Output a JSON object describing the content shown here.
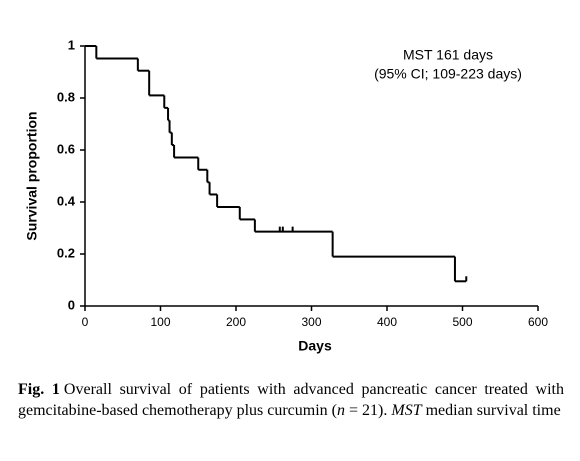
{
  "chart_data": {
    "type": "step",
    "x_label": "Days",
    "y_label": "Survival proportion",
    "annotations": [
      "MST 161 days",
      "(95% CI; 109-223 days)"
    ],
    "x": [
      0,
      15,
      70,
      85,
      105,
      110,
      112,
      115,
      118,
      150,
      162,
      165,
      175,
      205,
      225,
      328,
      490,
      505
    ],
    "values": [
      1,
      0.952,
      0.905,
      0.81,
      0.762,
      0.714,
      0.667,
      0.619,
      0.571,
      0.524,
      0.476,
      0.429,
      0.381,
      0.333,
      0.286,
      0.19,
      0.095,
      0.095
    ],
    "censored": {
      "x": [
        258,
        262,
        275,
        505
      ],
      "values": [
        0.286,
        0.286,
        0.286,
        0.095
      ]
    },
    "color": "#000000",
    "xlim": [
      0,
      600
    ],
    "xticks": [
      0,
      100,
      200,
      300,
      400,
      500,
      600
    ],
    "ylim": [
      0,
      1
    ],
    "yticks": [
      0,
      0.2,
      0.4,
      0.6,
      0.8,
      1
    ]
  },
  "caption": {
    "label": "Fig. 1",
    "parts": [
      "Overall survival of patients with advanced pancreatic cancer treated with gemcitabine-based chemotherapy plus curcumin (",
      "n",
      " = 21). ",
      "MST",
      " median survival time"
    ]
  }
}
